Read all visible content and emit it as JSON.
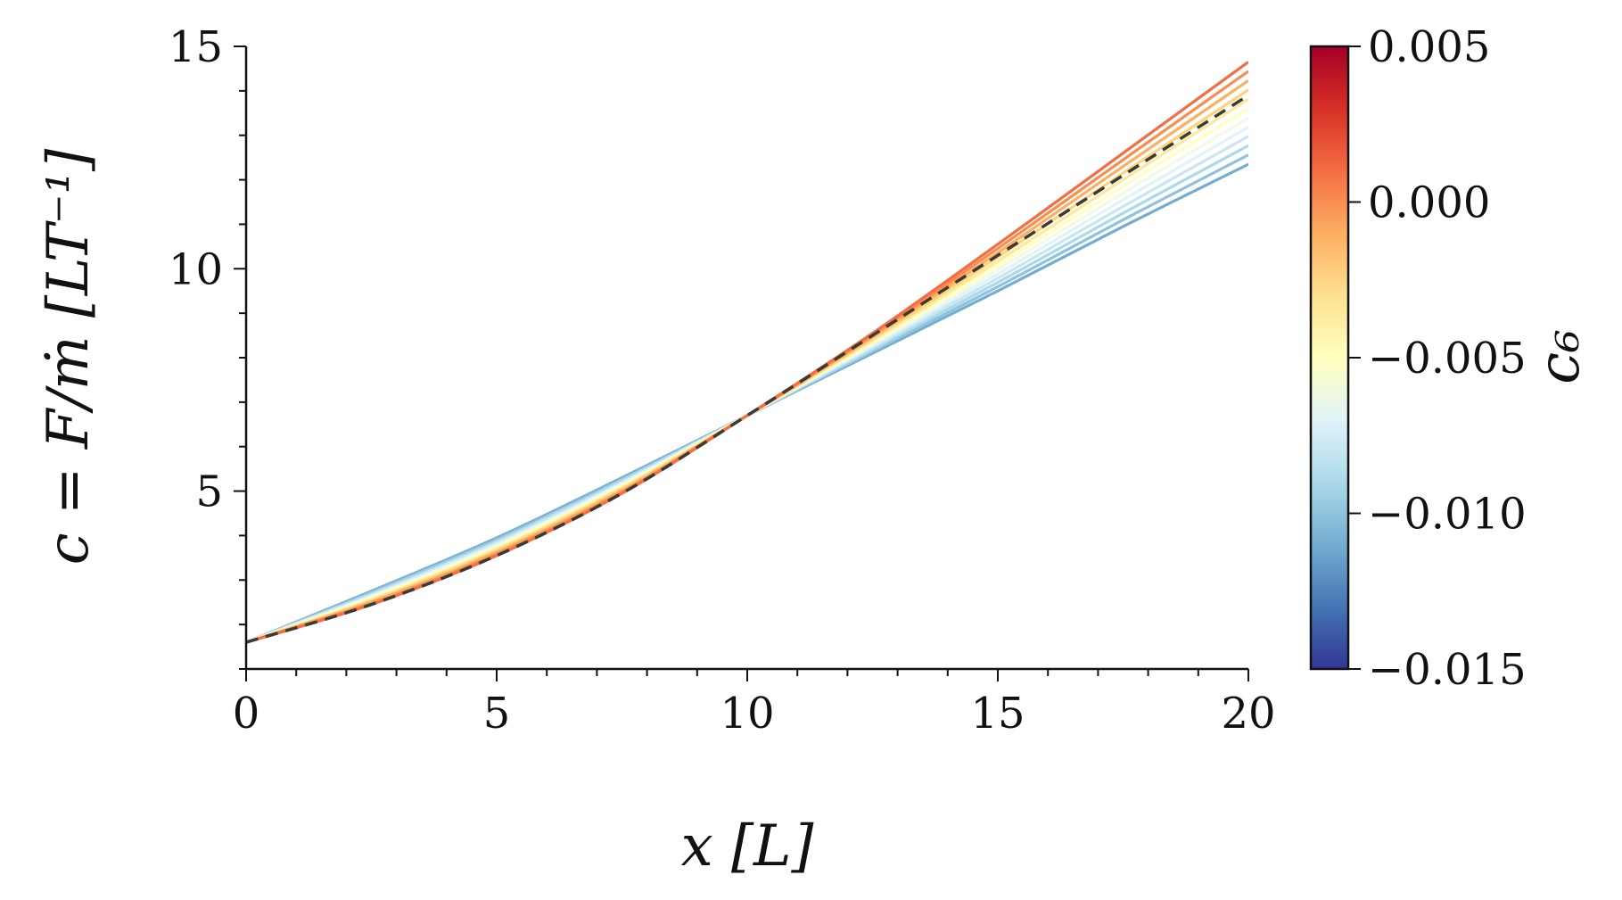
{
  "chart_data": {
    "type": "line",
    "xlabel": "x [L]",
    "ylabel": "c = F/ṁ [LT⁻¹]",
    "xlim": [
      0,
      20
    ],
    "ylim": [
      1,
      15
    ],
    "xticks": [
      "0",
      "5",
      "10",
      "15",
      "20"
    ],
    "yticks": [
      "5",
      "10",
      "15"
    ],
    "grid": false,
    "colorbar": {
      "label": "c₆",
      "range": [
        -0.015,
        0.005
      ],
      "ticks": [
        "0.005",
        "0.000",
        "−0.005",
        "−0.010",
        "−0.015"
      ],
      "colormap": "RdYlBu_r"
    },
    "series_model": {
      "description_values": "families of curves c(x) for c6 values",
      "c6_values": [
        -0.011,
        -0.01,
        -0.009,
        -0.008,
        -0.007,
        -0.006,
        -0.005,
        -0.004,
        -0.003,
        -0.002,
        -0.001,
        0.0
      ],
      "anchor_x": [
        0,
        2.5,
        5,
        7.5,
        10,
        12.5,
        15,
        17.5,
        20
      ],
      "reference_y": [
        1.6,
        2.45,
        3.55,
        4.95,
        6.7,
        8.5,
        10.3,
        12.1,
        13.9
      ],
      "low_y": [
        1.6,
        2.75,
        3.95,
        5.3,
        6.7,
        8.1,
        9.5,
        10.95,
        12.35
      ],
      "high_y": [
        1.6,
        2.45,
        3.55,
        4.95,
        6.7,
        8.55,
        10.55,
        12.6,
        14.65
      ]
    },
    "reference_line": {
      "style": "dashed",
      "color": "#3a3a36"
    },
    "colors": [
      "#74add1",
      "#8fc3dd",
      "#abd9e9",
      "#c8e6f0",
      "#e0f3f8",
      "#f2f9e6",
      "#ffffbf",
      "#fee99a",
      "#fed37a",
      "#fdae61",
      "#f88d52",
      "#f46d43"
    ]
  }
}
